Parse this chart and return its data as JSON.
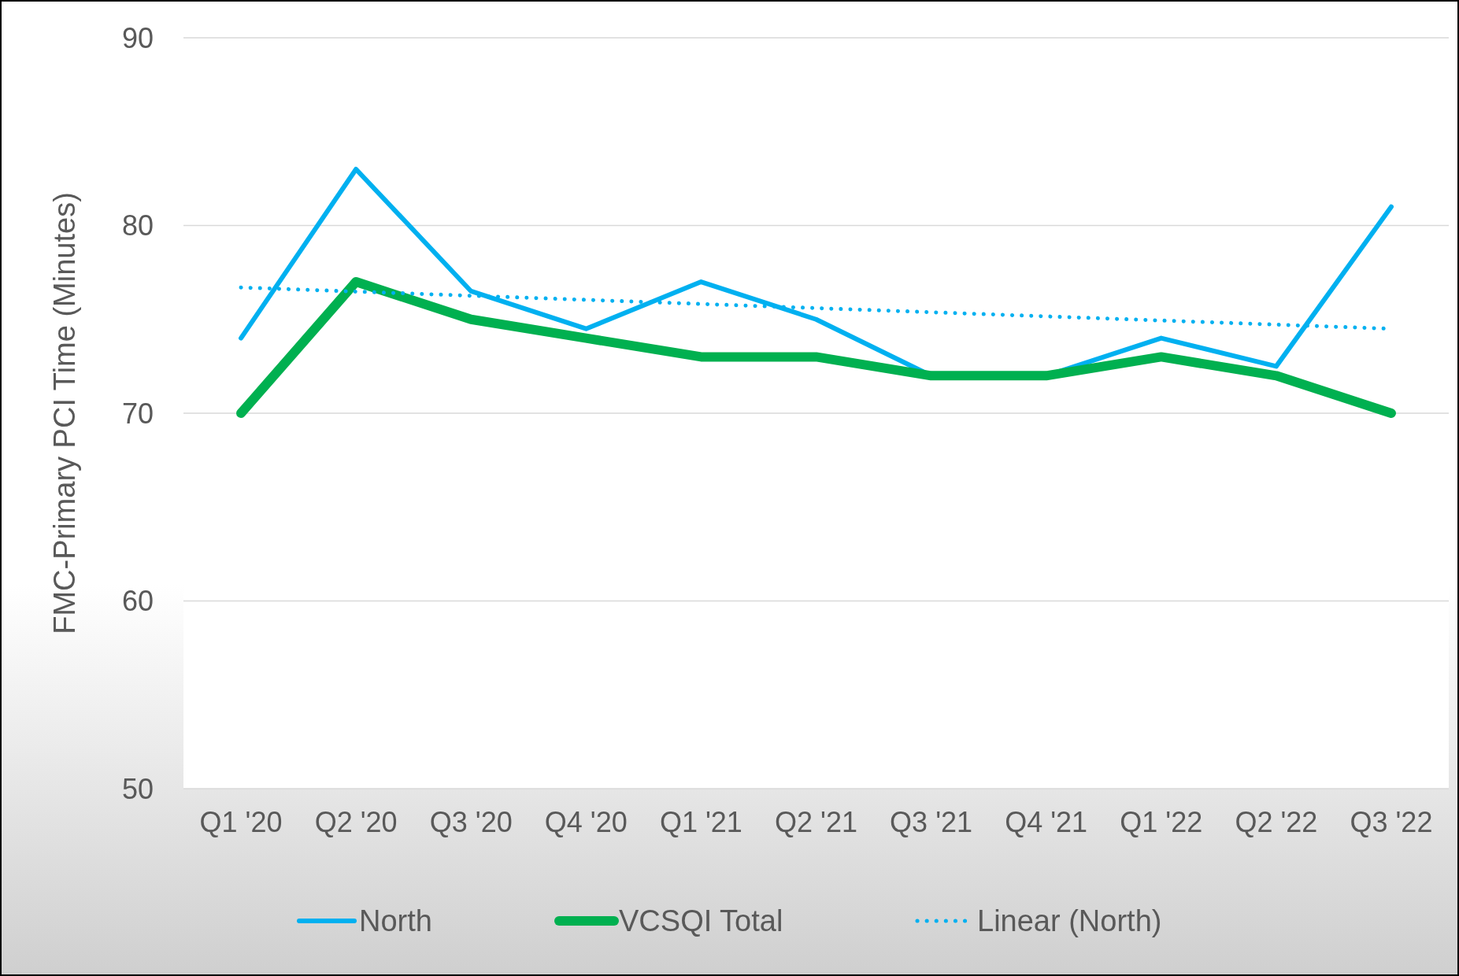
{
  "chart_data": {
    "type": "line",
    "ylabel": "FMC-Primary PCI Time (Minutes)",
    "categories": [
      "Q1 '20",
      "Q2 '20",
      "Q3 '20",
      "Q4 '20",
      "Q1 '21",
      "Q2 '21",
      "Q3 '21",
      "Q4 '21",
      "Q1 '22",
      "Q2 '22",
      "Q3 '22"
    ],
    "series": [
      {
        "name": "North",
        "color": "#00b0f0",
        "values": [
          74,
          83,
          76.5,
          74.5,
          77,
          75,
          72,
          72,
          74,
          72.5,
          81
        ],
        "line_style": "solid"
      },
      {
        "name": "VCSQI Total",
        "color": "#00b050",
        "values": [
          70,
          77,
          75,
          74,
          73,
          73,
          72,
          72,
          73,
          72,
          70
        ],
        "line_style": "solid"
      },
      {
        "name": "Linear (North)",
        "color": "#00b0f0",
        "values": [
          76.7,
          76.48,
          76.26,
          76.04,
          75.82,
          75.6,
          75.38,
          75.16,
          74.94,
          74.72,
          74.5
        ],
        "line_style": "dotted"
      }
    ],
    "ylim": [
      50,
      90
    ],
    "yticks": [
      50,
      60,
      70,
      80,
      90
    ],
    "grid": "y",
    "legend": "bottom",
    "marker": "none"
  }
}
